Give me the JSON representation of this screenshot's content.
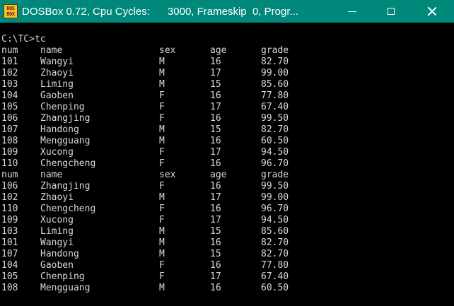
{
  "window": {
    "title": "DOSBox 0.72, Cpu Cycles:      3000, Frameskip  0, Progr...",
    "icon_label_top": "DOS",
    "icon_label_bottom": "BOX",
    "icon_names": {
      "app": "dosbox-icon",
      "minimize": "minimize-icon",
      "maximize": "maximize-icon",
      "close": "close-icon"
    },
    "colors": {
      "titlebar": "#00897b",
      "console_bg": "#000000",
      "console_text": "#d8d8d8"
    }
  },
  "console": {
    "prompt": "C:\\TC>tc",
    "tables": [
      {
        "headers": {
          "num": "num",
          "name": "name",
          "sex": "sex",
          "age": "age",
          "grade": "grade"
        },
        "rows": [
          {
            "num": "101",
            "name": "Wangyi",
            "sex": "M",
            "age": "16",
            "grade": "82.70"
          },
          {
            "num": "102",
            "name": "Zhaoyi",
            "sex": "M",
            "age": "17",
            "grade": "99.00"
          },
          {
            "num": "103",
            "name": "Liming",
            "sex": "M",
            "age": "15",
            "grade": "85.60"
          },
          {
            "num": "104",
            "name": "Gaoben",
            "sex": "F",
            "age": "16",
            "grade": "77.80"
          },
          {
            "num": "105",
            "name": "Chenping",
            "sex": "F",
            "age": "17",
            "grade": "67.40"
          },
          {
            "num": "106",
            "name": "Zhangjing",
            "sex": "F",
            "age": "16",
            "grade": "99.50"
          },
          {
            "num": "107",
            "name": "Handong",
            "sex": "M",
            "age": "15",
            "grade": "82.70"
          },
          {
            "num": "108",
            "name": "Mengguang",
            "sex": "M",
            "age": "16",
            "grade": "60.50"
          },
          {
            "num": "109",
            "name": "Xucong",
            "sex": "F",
            "age": "17",
            "grade": "94.50"
          },
          {
            "num": "110",
            "name": "Chengcheng",
            "sex": "F",
            "age": "16",
            "grade": "96.70"
          }
        ]
      },
      {
        "headers": {
          "num": "num",
          "name": "name",
          "sex": "sex",
          "age": "age",
          "grade": "grade"
        },
        "rows": [
          {
            "num": "106",
            "name": "Zhangjing",
            "sex": "F",
            "age": "16",
            "grade": "99.50"
          },
          {
            "num": "102",
            "name": "Zhaoyi",
            "sex": "M",
            "age": "17",
            "grade": "99.00"
          },
          {
            "num": "110",
            "name": "Chengcheng",
            "sex": "F",
            "age": "16",
            "grade": "96.70"
          },
          {
            "num": "109",
            "name": "Xucong",
            "sex": "F",
            "age": "17",
            "grade": "94.50"
          },
          {
            "num": "103",
            "name": "Liming",
            "sex": "M",
            "age": "15",
            "grade": "85.60"
          },
          {
            "num": "101",
            "name": "Wangyi",
            "sex": "M",
            "age": "16",
            "grade": "82.70"
          },
          {
            "num": "107",
            "name": "Handong",
            "sex": "M",
            "age": "15",
            "grade": "82.70"
          },
          {
            "num": "104",
            "name": "Gaoben",
            "sex": "F",
            "age": "16",
            "grade": "77.80"
          },
          {
            "num": "105",
            "name": "Chenping",
            "sex": "F",
            "age": "17",
            "grade": "67.40"
          },
          {
            "num": "108",
            "name": "Mengguang",
            "sex": "M",
            "age": "16",
            "grade": "60.50"
          }
        ]
      }
    ]
  }
}
